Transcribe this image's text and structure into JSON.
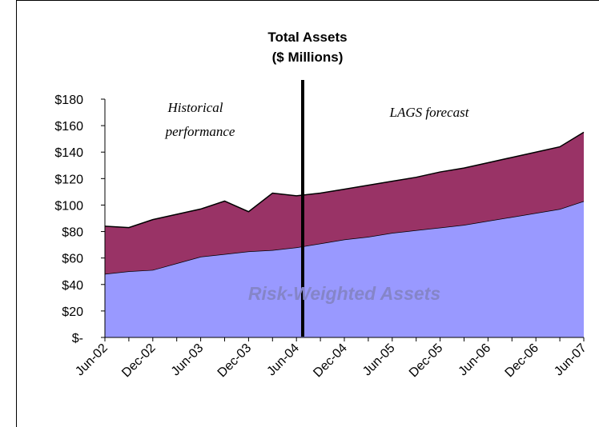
{
  "chart_data": {
    "type": "stacked_area",
    "title": "Total Assets",
    "subtitle": "($ Millions)",
    "annotations": [
      "Historical",
      "performance",
      "LAGS forecast"
    ],
    "categories": [
      "Jun-02",
      null,
      "Dec-02",
      null,
      "Jun-03",
      null,
      "Dec-03",
      null,
      "Jun-04",
      null,
      "Dec-04",
      null,
      "Jun-05",
      null,
      "Dec-05",
      null,
      "Jun-06",
      null,
      "Dec-06",
      null,
      "Jun-07"
    ],
    "series": [
      {
        "name": "Risk-Weighted Assets",
        "color": "#9999ff",
        "values": [
          48,
          50,
          51,
          56,
          61,
          63,
          65,
          66,
          68,
          71,
          74,
          76,
          79,
          81,
          83,
          85,
          88,
          91,
          94,
          97,
          103
        ]
      },
      {
        "color": "#993366",
        "values": [
          36,
          33,
          38,
          37,
          36,
          40,
          30,
          43,
          39,
          38,
          38,
          39,
          39,
          40,
          42,
          43,
          44,
          45,
          46,
          47,
          52
        ]
      }
    ],
    "ylim": [
      0,
      180
    ],
    "yticks": [
      {
        "value": 0,
        "label": "$-"
      },
      {
        "value": 20,
        "label": "$20"
      },
      {
        "value": 40,
        "label": "$40"
      },
      {
        "value": 60,
        "label": "$60"
      },
      {
        "value": 80,
        "label": "$80"
      },
      {
        "value": 100,
        "label": "$100"
      },
      {
        "value": 120,
        "label": "$120"
      },
      {
        "value": 140,
        "label": "$140"
      },
      {
        "value": 160,
        "label": "$160"
      },
      {
        "value": 180,
        "label": "$180"
      }
    ]
  }
}
